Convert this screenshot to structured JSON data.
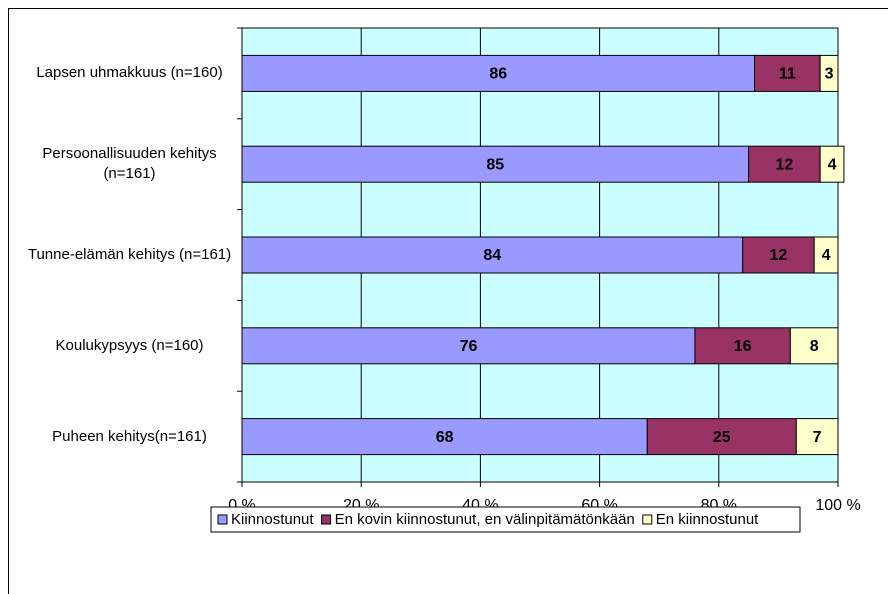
{
  "chart_data": {
    "type": "stacked_barh",
    "categories": [
      "Lapsen uhmakkuus (n=160)",
      "Persoonallisuuden kehitys (n=161)",
      "Tunne-elämän kehitys (n=161)",
      "Koulukypsyys (n=160)",
      "Puheen kehitys(n=161)"
    ],
    "series": [
      {
        "name": "Kiinnostunut",
        "color": "#9999ff",
        "values": [
          86,
          85,
          84,
          76,
          68
        ]
      },
      {
        "name": "En kovin kiinnostunut, en välinpitämätönkään",
        "color": "#993366",
        "values": [
          11,
          12,
          12,
          16,
          25
        ]
      },
      {
        "name": "En kiinnostunut",
        "color": "#ffffcc",
        "values": [
          3,
          4,
          4,
          8,
          7
        ]
      }
    ],
    "xlim": [
      0,
      100
    ],
    "xticks": [
      {
        "value": 0,
        "label": "0 %"
      },
      {
        "value": 20,
        "label": "20 %"
      },
      {
        "value": 40,
        "label": "40 %"
      },
      {
        "value": 60,
        "label": "60 %"
      },
      {
        "value": 80,
        "label": "80 %"
      },
      {
        "value": 100,
        "label": "100 %"
      }
    ],
    "grid": true,
    "legend": "bottom",
    "background": "#ccffff"
  }
}
